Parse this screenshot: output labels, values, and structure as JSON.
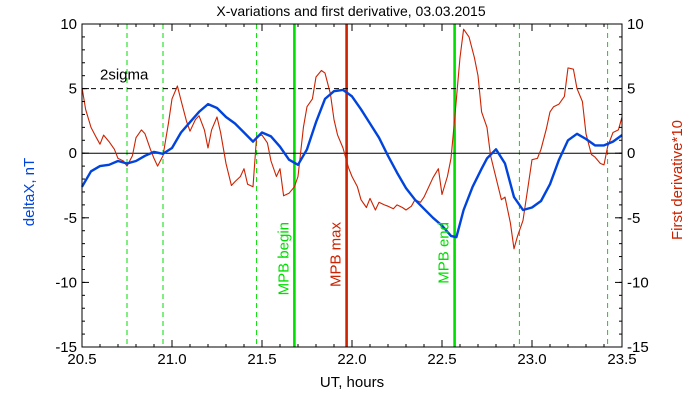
{
  "chart_data": {
    "type": "line",
    "title": "X-variations and first derivative, 03.03.2015",
    "xlabel": "UT, hours",
    "ylabel_left": "deltaX, nT",
    "ylabel_right": "First derivative*10",
    "xlim": [
      20.5,
      23.5
    ],
    "ylim_left": [
      -15,
      10
    ],
    "ylim_right": [
      -15,
      10
    ],
    "x_ticks": [
      "20.5",
      "21.0",
      "21.5",
      "22.0",
      "22.5",
      "23.0",
      "23.5"
    ],
    "x_tick_values": [
      20.5,
      21.0,
      21.5,
      22.0,
      22.5,
      23.0,
      23.5
    ],
    "y_ticks": [
      "-15",
      "-10",
      "-5",
      "0",
      "5",
      "10"
    ],
    "y_tick_values": [
      -15,
      -10,
      -5,
      0,
      5,
      10
    ],
    "threshold": {
      "value": 5,
      "label": "2sigma"
    },
    "zero_line": 0,
    "green_dashed_lines": [
      20.75,
      20.95,
      21.47,
      22.93,
      23.42
    ],
    "markers": [
      {
        "label": "MPB begin",
        "x": 21.68,
        "color": "#00dd00"
      },
      {
        "label": "MPB max",
        "x": 21.97,
        "color": "#cc2200"
      },
      {
        "label": "MPB end",
        "x": 22.57,
        "color": "#00dd00"
      }
    ],
    "series": [
      {
        "name": "deltaX, nT",
        "color": "#0044dd",
        "axis": "left",
        "points": [
          [
            20.5,
            -2.6
          ],
          [
            20.55,
            -1.4
          ],
          [
            20.6,
            -1.0
          ],
          [
            20.65,
            -0.9
          ],
          [
            20.7,
            -0.6
          ],
          [
            20.75,
            -0.8
          ],
          [
            20.8,
            -0.6
          ],
          [
            20.85,
            -0.2
          ],
          [
            20.9,
            0.1
          ],
          [
            20.95,
            -0.05
          ],
          [
            21.0,
            0.4
          ],
          [
            21.05,
            1.6
          ],
          [
            21.1,
            2.4
          ],
          [
            21.15,
            3.2
          ],
          [
            21.2,
            3.8
          ],
          [
            21.25,
            3.5
          ],
          [
            21.3,
            2.8
          ],
          [
            21.35,
            2.3
          ],
          [
            21.4,
            1.6
          ],
          [
            21.45,
            0.9
          ],
          [
            21.5,
            1.6
          ],
          [
            21.55,
            1.3
          ],
          [
            21.6,
            0.5
          ],
          [
            21.65,
            -0.5
          ],
          [
            21.7,
            -0.9
          ],
          [
            21.75,
            0.3
          ],
          [
            21.8,
            2.4
          ],
          [
            21.85,
            4.2
          ],
          [
            21.9,
            4.8
          ],
          [
            21.95,
            4.9
          ],
          [
            22.0,
            4.4
          ],
          [
            22.05,
            3.4
          ],
          [
            22.1,
            2.3
          ],
          [
            22.15,
            1.2
          ],
          [
            22.2,
            -0.2
          ],
          [
            22.25,
            -1.5
          ],
          [
            22.3,
            -2.7
          ],
          [
            22.35,
            -3.6
          ],
          [
            22.4,
            -4.3
          ],
          [
            22.45,
            -5.0
          ],
          [
            22.5,
            -5.6
          ],
          [
            22.55,
            -6.4
          ],
          [
            22.58,
            -6.5
          ],
          [
            22.62,
            -4.4
          ],
          [
            22.67,
            -2.6
          ],
          [
            22.72,
            -1.2
          ],
          [
            22.75,
            -0.4
          ],
          [
            22.8,
            0.3
          ],
          [
            22.85,
            -0.8
          ],
          [
            22.9,
            -3.4
          ],
          [
            22.95,
            -4.4
          ],
          [
            23.0,
            -4.2
          ],
          [
            23.05,
            -3.7
          ],
          [
            23.1,
            -2.4
          ],
          [
            23.15,
            -0.5
          ],
          [
            23.2,
            1.0
          ],
          [
            23.25,
            1.5
          ],
          [
            23.3,
            1.1
          ],
          [
            23.35,
            0.6
          ],
          [
            23.4,
            0.6
          ],
          [
            23.45,
            0.9
          ],
          [
            23.5,
            1.4
          ]
        ]
      },
      {
        "name": "First derivative*10",
        "color": "#cc2200",
        "axis": "right",
        "points": [
          [
            20.5,
            5.1
          ],
          [
            20.52,
            3.4
          ],
          [
            20.55,
            2.0
          ],
          [
            20.58,
            1.2
          ],
          [
            20.6,
            0.7
          ],
          [
            20.62,
            1.4
          ],
          [
            20.65,
            0.9
          ],
          [
            20.68,
            0.3
          ],
          [
            20.7,
            -0.4
          ],
          [
            20.73,
            -0.6
          ],
          [
            20.75,
            -1.0
          ],
          [
            20.78,
            -0.2
          ],
          [
            20.8,
            1.2
          ],
          [
            20.83,
            1.8
          ],
          [
            20.85,
            1.5
          ],
          [
            20.88,
            0.3
          ],
          [
            20.9,
            -0.4
          ],
          [
            20.92,
            -1.0
          ],
          [
            20.95,
            -0.2
          ],
          [
            20.98,
            2.3
          ],
          [
            21.0,
            4.2
          ],
          [
            21.03,
            5.2
          ],
          [
            21.05,
            4.1
          ],
          [
            21.08,
            2.5
          ],
          [
            21.1,
            1.7
          ],
          [
            21.13,
            2.6
          ],
          [
            21.15,
            2.9
          ],
          [
            21.18,
            1.8
          ],
          [
            21.2,
            0.4
          ],
          [
            21.22,
            1.8
          ],
          [
            21.25,
            2.8
          ],
          [
            21.27,
            1.6
          ],
          [
            21.3,
            -0.8
          ],
          [
            21.33,
            -2.5
          ],
          [
            21.35,
            -2.2
          ],
          [
            21.38,
            -1.8
          ],
          [
            21.4,
            -1.2
          ],
          [
            21.42,
            -2.4
          ],
          [
            21.45,
            -2.6
          ],
          [
            21.47,
            1.3
          ],
          [
            21.5,
            1.4
          ],
          [
            21.53,
            0.8
          ],
          [
            21.55,
            -0.6
          ],
          [
            21.58,
            -1.8
          ],
          [
            21.6,
            -1.2
          ],
          [
            21.62,
            -3.3
          ],
          [
            21.65,
            -3.1
          ],
          [
            21.68,
            -2.6
          ],
          [
            21.7,
            -1.8
          ],
          [
            21.73,
            2.0
          ],
          [
            21.75,
            3.6
          ],
          [
            21.78,
            4.2
          ],
          [
            21.8,
            5.9
          ],
          [
            21.83,
            6.4
          ],
          [
            21.85,
            6.2
          ],
          [
            21.88,
            4.6
          ],
          [
            21.9,
            2.6
          ],
          [
            21.92,
            1.4
          ],
          [
            21.95,
            0.4
          ],
          [
            21.98,
            -1.1
          ],
          [
            22.0,
            -1.8
          ],
          [
            22.03,
            -2.6
          ],
          [
            22.05,
            -3.6
          ],
          [
            22.08,
            -4.2
          ],
          [
            22.1,
            -3.5
          ],
          [
            22.13,
            -4.4
          ],
          [
            22.15,
            -3.8
          ],
          [
            22.18,
            -4.0
          ],
          [
            22.2,
            -4.1
          ],
          [
            22.23,
            -4.3
          ],
          [
            22.25,
            -4.0
          ],
          [
            22.28,
            -4.2
          ],
          [
            22.3,
            -4.4
          ],
          [
            22.33,
            -4.1
          ],
          [
            22.35,
            -3.6
          ],
          [
            22.38,
            -3.8
          ],
          [
            22.4,
            -3.4
          ],
          [
            22.42,
            -2.8
          ],
          [
            22.45,
            -1.9
          ],
          [
            22.48,
            -1.2
          ],
          [
            22.5,
            -3.2
          ],
          [
            22.53,
            -1.8
          ],
          [
            22.55,
            -0.4
          ],
          [
            22.57,
            2.6
          ],
          [
            22.6,
            7.4
          ],
          [
            22.62,
            9.6
          ],
          [
            22.65,
            9.0
          ],
          [
            22.68,
            7.4
          ],
          [
            22.7,
            6.0
          ],
          [
            22.72,
            3.2
          ],
          [
            22.75,
            2.0
          ],
          [
            22.77,
            -0.2
          ],
          [
            22.8,
            -1.9
          ],
          [
            22.83,
            -3.6
          ],
          [
            22.85,
            -3.4
          ],
          [
            22.88,
            -5.4
          ],
          [
            22.9,
            -7.4
          ],
          [
            22.92,
            -6.4
          ],
          [
            22.95,
            -5.2
          ],
          [
            22.98,
            -2.4
          ],
          [
            23.0,
            -0.5
          ],
          [
            23.03,
            -0.4
          ],
          [
            23.05,
            0.3
          ],
          [
            23.08,
            1.9
          ],
          [
            23.1,
            3.2
          ],
          [
            23.12,
            3.6
          ],
          [
            23.15,
            3.8
          ],
          [
            23.18,
            4.4
          ],
          [
            23.2,
            6.6
          ],
          [
            23.23,
            6.5
          ],
          [
            23.25,
            5.0
          ],
          [
            23.28,
            4.0
          ],
          [
            23.3,
            1.5
          ],
          [
            23.33,
            -0.1
          ],
          [
            23.35,
            -0.3
          ],
          [
            23.38,
            -0.8
          ],
          [
            23.4,
            -0.9
          ],
          [
            23.42,
            0.5
          ],
          [
            23.45,
            1.6
          ],
          [
            23.48,
            1.8
          ],
          [
            23.5,
            2.8
          ]
        ]
      }
    ],
    "grid": false
  }
}
